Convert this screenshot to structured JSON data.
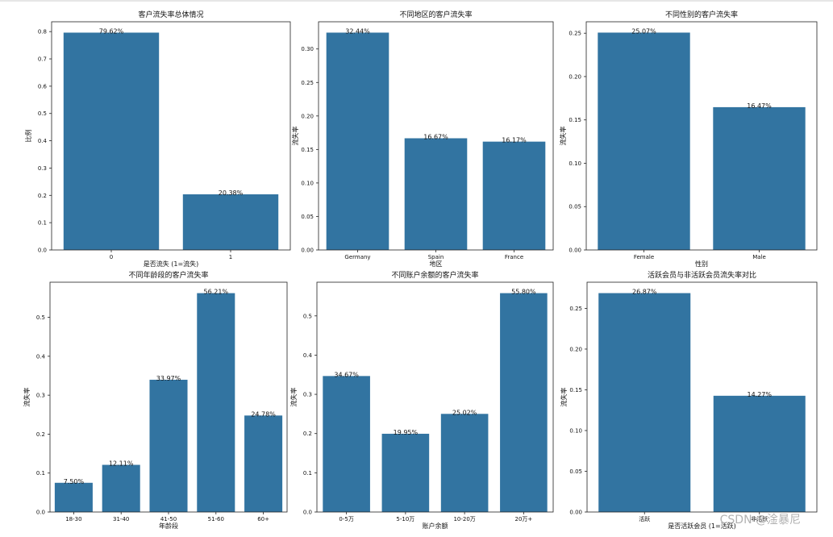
{
  "watermark": "CSDN @淦暴尼",
  "colors": {
    "bar": "#3274a1",
    "axis": "#222222"
  },
  "chart_data": [
    {
      "type": "bar",
      "title": "客户流失率总体情况",
      "xlabel": "是否流失 (1=流失)",
      "ylabel": "比例",
      "categories": [
        "0",
        "1"
      ],
      "values": [
        0.7962,
        0.2038
      ],
      "labels": [
        "79.62%",
        "20.38%"
      ],
      "ylim": [
        0,
        0.836
      ],
      "yticks": [
        0,
        0.1,
        0.2,
        0.3,
        0.4,
        0.5,
        0.6,
        0.7,
        0.8
      ],
      "ytick_labels": [
        "0.0",
        "0.1",
        "0.2",
        "0.3",
        "0.4",
        "0.5",
        "0.6",
        "0.7",
        "0.8"
      ]
    },
    {
      "type": "bar",
      "title": "不同地区的客户流失率",
      "xlabel": "地区",
      "ylabel": "流失率",
      "categories": [
        "Germany",
        "Spain",
        "France"
      ],
      "values": [
        0.3244,
        0.1667,
        0.1617
      ],
      "labels": [
        "32.44%",
        "16.67%",
        "16.17%"
      ],
      "ylim": [
        0,
        0.3406
      ],
      "yticks": [
        0,
        0.05,
        0.1,
        0.15,
        0.2,
        0.25,
        0.3
      ],
      "ytick_labels": [
        "0.00",
        "0.05",
        "0.10",
        "0.15",
        "0.20",
        "0.25",
        "0.30"
      ]
    },
    {
      "type": "bar",
      "title": "不同性别的客户流失率",
      "xlabel": "性别",
      "ylabel": "流失率",
      "categories": [
        "Female",
        "Male"
      ],
      "values": [
        0.2507,
        0.1647
      ],
      "labels": [
        "25.07%",
        "16.47%"
      ],
      "ylim": [
        0,
        0.2632
      ],
      "yticks": [
        0,
        0.05,
        0.1,
        0.15,
        0.2,
        0.25
      ],
      "ytick_labels": [
        "0.00",
        "0.05",
        "0.10",
        "0.15",
        "0.20",
        "0.25"
      ]
    },
    {
      "type": "bar",
      "title": "不同年龄段的客户流失率",
      "xlabel": "年龄段",
      "ylabel": "流失率",
      "categories": [
        "18-30",
        "31-40",
        "41-50",
        "51-60",
        "60+"
      ],
      "values": [
        0.075,
        0.1211,
        0.3397,
        0.5621,
        0.2478
      ],
      "labels": [
        "7.50%",
        "12.11%",
        "33.97%",
        "56.21%",
        "24.78%"
      ],
      "ylim": [
        0,
        0.5902
      ],
      "yticks": [
        0,
        0.1,
        0.2,
        0.3,
        0.4,
        0.5
      ],
      "ytick_labels": [
        "0.0",
        "0.1",
        "0.2",
        "0.3",
        "0.4",
        "0.5"
      ]
    },
    {
      "type": "bar",
      "title": "不同账户余额的客户流失率",
      "xlabel": "账户余额",
      "ylabel": "流失率",
      "categories": [
        "0-5万",
        "5-10万",
        "10-20万",
        "20万+"
      ],
      "values": [
        0.3467,
        0.1995,
        0.2502,
        0.558
      ],
      "labels": [
        "34.67%",
        "19.95%",
        "25.02%",
        "55.80%"
      ],
      "ylim": [
        0,
        0.5859
      ],
      "yticks": [
        0,
        0.1,
        0.2,
        0.3,
        0.4,
        0.5
      ],
      "ytick_labels": [
        "0.0",
        "0.1",
        "0.2",
        "0.3",
        "0.4",
        "0.5"
      ]
    },
    {
      "type": "bar",
      "title": "活跃会员与非活跃会员流失率对比",
      "xlabel": "是否活跃会员 (1=活跃)",
      "ylabel": "流失率",
      "categories": [
        "活跃",
        "非活跃"
      ],
      "values": [
        0.2687,
        0.1427
      ],
      "labels": [
        "26.87%",
        "14.27%"
      ],
      "ylim": [
        0,
        0.2821
      ],
      "yticks": [
        0,
        0.05,
        0.1,
        0.15,
        0.2,
        0.25
      ],
      "ytick_labels": [
        "0.00",
        "0.05",
        "0.10",
        "0.15",
        "0.20",
        "0.25"
      ]
    }
  ]
}
